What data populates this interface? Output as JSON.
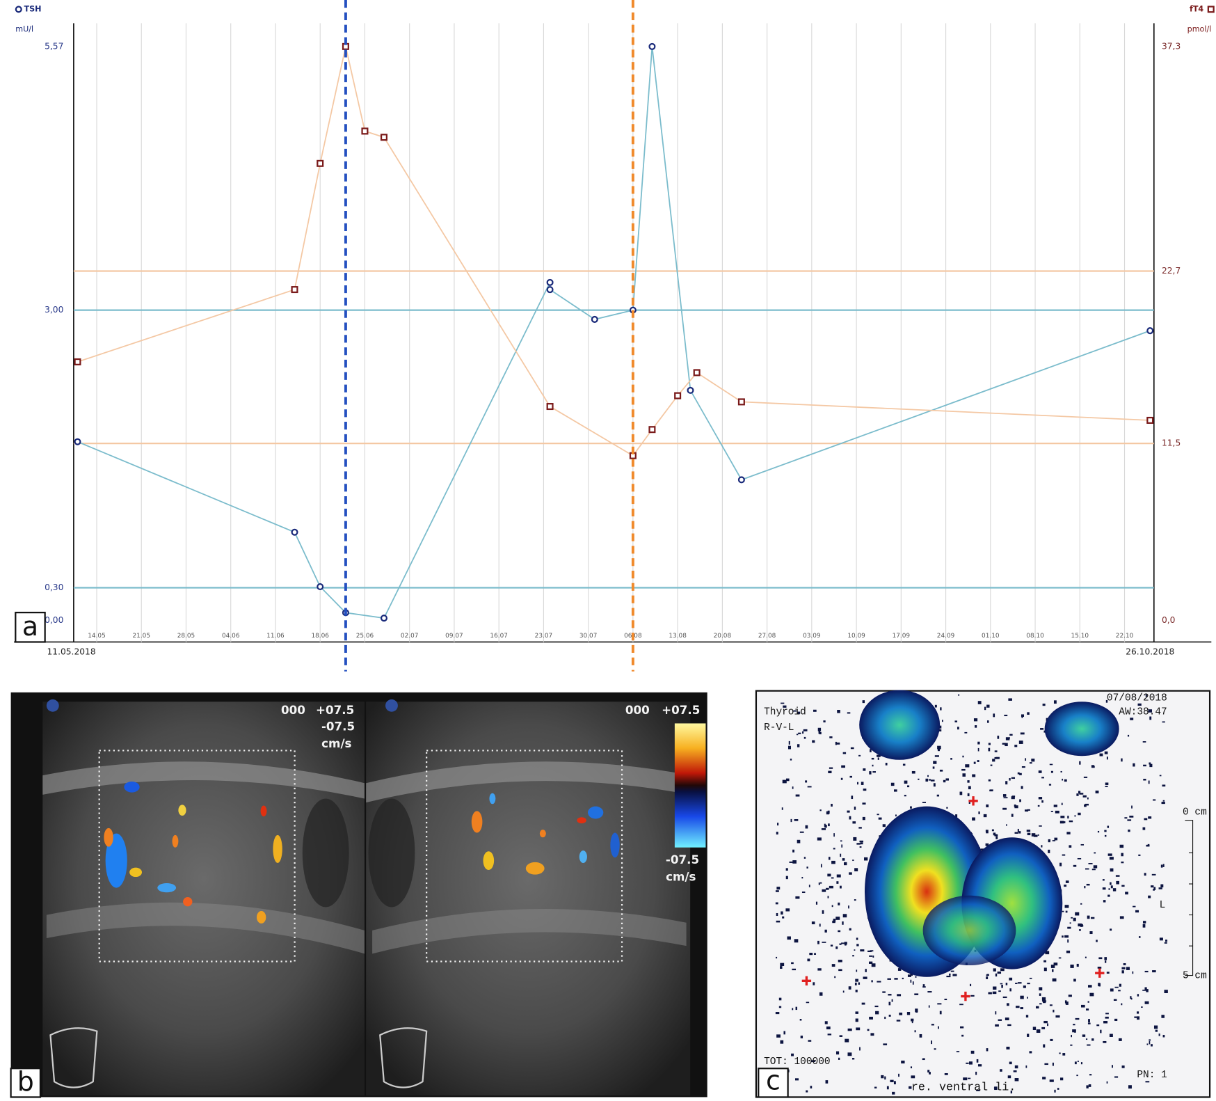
{
  "chart_data": {
    "type": "line",
    "xlim": [
      "2018-05-11",
      "2018-10-26"
    ],
    "xlim_labels": [
      "11.05.2018",
      "26.10.2018"
    ],
    "xticks": [
      {
        "value": "2018-05-14",
        "label": "14.05"
      },
      {
        "value": "2018-05-21",
        "label": "21.05"
      },
      {
        "value": "2018-05-28",
        "label": "28.05"
      },
      {
        "value": "2018-06-04",
        "label": "04.06"
      },
      {
        "value": "2018-06-11",
        "label": "11.06"
      },
      {
        "value": "2018-06-18",
        "label": "18.06"
      },
      {
        "value": "2018-06-25",
        "label": "25.06"
      },
      {
        "value": "2018-07-02",
        "label": "02.07"
      },
      {
        "value": "2018-07-09",
        "label": "09.07"
      },
      {
        "value": "2018-07-16",
        "label": "16.07"
      },
      {
        "value": "2018-07-23",
        "label": "23.07"
      },
      {
        "value": "2018-07-30",
        "label": "30.07"
      },
      {
        "value": "2018-08-06",
        "label": "06.08"
      },
      {
        "value": "2018-08-13",
        "label": "13.08"
      },
      {
        "value": "2018-08-20",
        "label": "20.08"
      },
      {
        "value": "2018-08-27",
        "label": "27.08"
      },
      {
        "value": "2018-09-03",
        "label": "03.09"
      },
      {
        "value": "2018-09-10",
        "label": "10.09"
      },
      {
        "value": "2018-09-17",
        "label": "17.09"
      },
      {
        "value": "2018-09-24",
        "label": "24.09"
      },
      {
        "value": "2018-10-01",
        "label": "01.10"
      },
      {
        "value": "2018-10-08",
        "label": "08.10"
      },
      {
        "value": "2018-10-15",
        "label": "15.10"
      },
      {
        "value": "2018-10-22",
        "label": "22.10"
      }
    ],
    "ylim": [
      0,
      5.57
    ],
    "yticks": [
      {
        "value": 0,
        "label": "0,00"
      },
      {
        "value": 0.3,
        "label": "0,30"
      },
      {
        "value": 3,
        "label": "3,00"
      },
      {
        "value": 5.57,
        "label": "5,57"
      }
    ],
    "y2lim": [
      0,
      37.3
    ],
    "y2ticks": [
      {
        "value": 0,
        "label": "0,0"
      },
      {
        "value": 11.5,
        "label": "11,5"
      },
      {
        "value": 22.7,
        "label": "22,7"
      },
      {
        "value": 37.3,
        "label": "37,3"
      }
    ],
    "series": [
      {
        "name": "TSH",
        "unit": "mU/l",
        "color": "#7bbccc",
        "marker_color": "#1a2a7a",
        "marker": "circle",
        "reference_range": [
          0.3,
          3.0
        ],
        "x": [
          "2018-05-11",
          "2018-06-14",
          "2018-06-18",
          "2018-06-22",
          "2018-06-28",
          "2018-07-24",
          "2018-07-24",
          "2018-07-31",
          "2018-08-06",
          "2018-08-09",
          "2018-08-15",
          "2018-08-23",
          "2018-10-26"
        ],
        "values": [
          1.72,
          0.84,
          0.31,
          0.07,
          0.02,
          3.27,
          3.2,
          2.91,
          3.0,
          5.57,
          2.22,
          1.35,
          2.8
        ]
      },
      {
        "name": "fT4",
        "unit": "pmol/l",
        "color": "#f4c8a4",
        "marker_color": "#7a1a1a",
        "marker": "square",
        "axis": "y2",
        "reference_range": [
          11.5,
          22.7
        ],
        "x": [
          "2018-05-11",
          "2018-06-14",
          "2018-06-18",
          "2018-06-22",
          "2018-06-25",
          "2018-06-28",
          "2018-07-24",
          "2018-08-06",
          "2018-08-09",
          "2018-08-13",
          "2018-08-16",
          "2018-08-23",
          "2018-10-26"
        ],
        "values": [
          16.8,
          21.5,
          29.7,
          37.3,
          31.8,
          31.4,
          13.9,
          10.7,
          12.4,
          14.6,
          16.1,
          14.2,
          13.0
        ]
      }
    ],
    "markers": [
      {
        "x": "2018-06-22",
        "color": "#2450c0"
      },
      {
        "x": "2018-08-06",
        "color": "#f08a2c"
      }
    ]
  },
  "panel_labels": [
    "a",
    "b",
    "c"
  ],
  "ultrasound": {
    "left": [
      "000",
      "+07.5",
      "-07.5",
      "cm/s"
    ],
    "right": [
      "000",
      "+07.5"
    ],
    "scale": [
      "-07.5",
      "cm/s"
    ]
  },
  "scintigraphy": {
    "title": "Thyroid",
    "view": "R-V-L",
    "date": "07/08/2018",
    "acq": "AW:38.47",
    "scale_top": "0 cm",
    "scale_bottom": "5 cm",
    "side": "L",
    "counts": "TOT: 100000",
    "orientation": "re.  ventral  li.",
    "frame": "PN: 1"
  }
}
